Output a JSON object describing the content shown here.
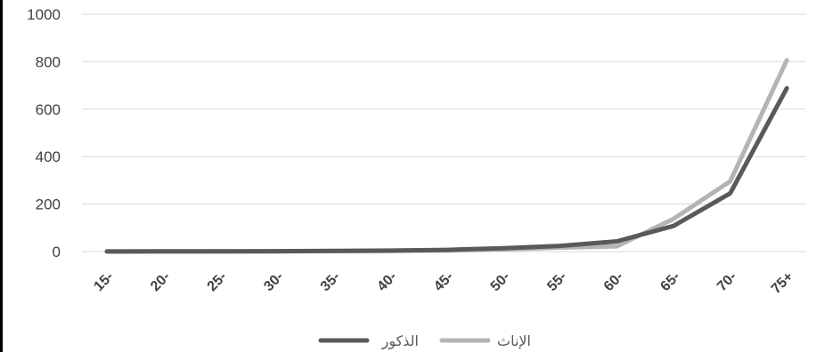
{
  "chart_data": {
    "type": "line",
    "categories": [
      "15-",
      "20-",
      "25-",
      "30-",
      "35-",
      "40-",
      "45-",
      "50-",
      "55-",
      "60-",
      "65-",
      "70-",
      "75+"
    ],
    "ylim": [
      0,
      1000
    ],
    "yticks": [
      0,
      200,
      400,
      600,
      800,
      1000
    ],
    "grid": true,
    "legend_position": "bottom",
    "series": [
      {
        "name": "الذكور",
        "color": "#595959",
        "values": [
          0.5,
          0.6,
          1,
          1.5,
          2.5,
          4,
          7,
          14,
          24,
          43,
          108,
          245,
          688
        ]
      },
      {
        "name": "الإناث",
        "color": "#b4b4b4",
        "values": [
          0.4,
          0.5,
          0.8,
          1.2,
          2,
          3,
          5,
          9,
          17,
          22,
          138,
          296,
          806
        ]
      }
    ]
  }
}
